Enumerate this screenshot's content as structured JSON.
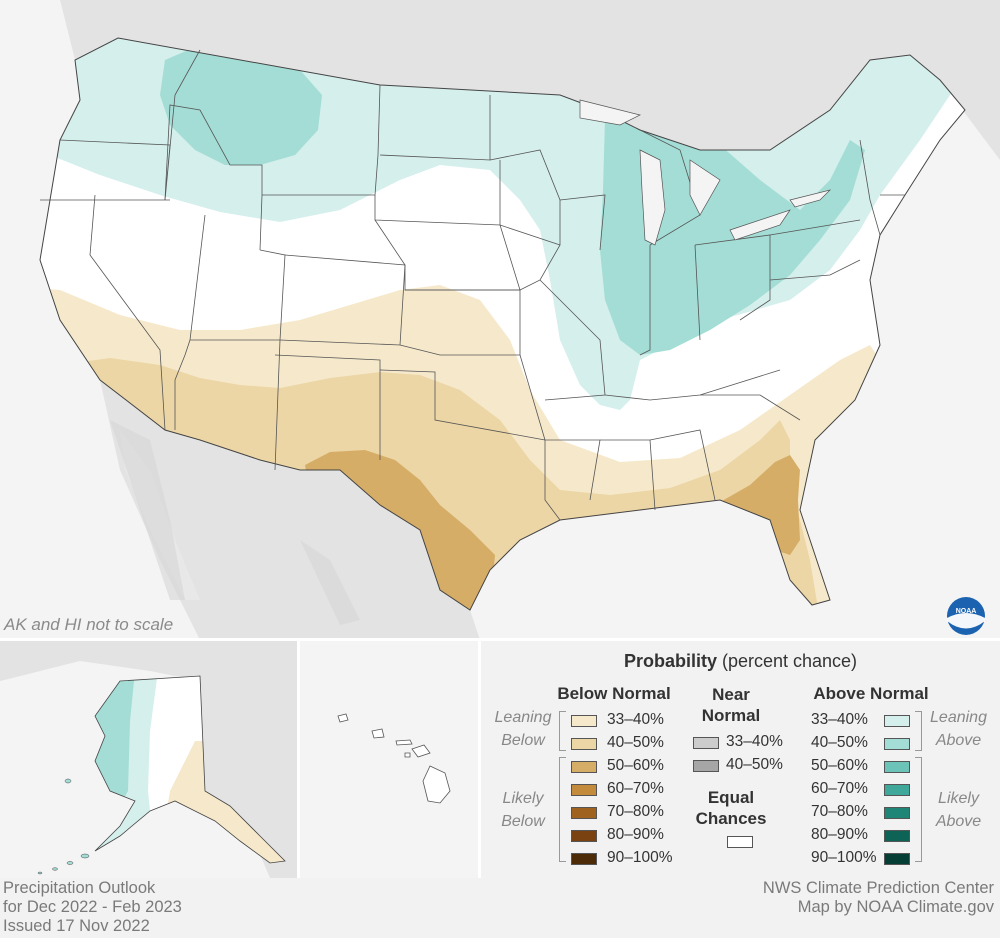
{
  "map": {
    "scale_note": "AK and HI not to scale",
    "logo_text": "NOAA"
  },
  "legend": {
    "title_bold": "Probability",
    "title_rest": "(percent chance)",
    "below": {
      "header": "Below Normal",
      "leaning_label": [
        "Leaning",
        "Below"
      ],
      "likely_label": [
        "Likely",
        "Below"
      ],
      "items": [
        {
          "label": "33–40%",
          "color": "#f6e9cb"
        },
        {
          "label": "40–50%",
          "color": "#ecd6a6"
        },
        {
          "label": "50–60%",
          "color": "#d6ad67"
        },
        {
          "label": "60–70%",
          "color": "#c48b3d"
        },
        {
          "label": "70–80%",
          "color": "#a0621f"
        },
        {
          "label": "80–90%",
          "color": "#7a4210"
        },
        {
          "label": "90–100%",
          "color": "#4d2a08"
        }
      ]
    },
    "near": {
      "header": [
        "Near",
        "Normal"
      ],
      "items": [
        {
          "label": "33–40%",
          "color": "#cccccc"
        },
        {
          "label": "40–50%",
          "color": "#a6a6a6"
        }
      ],
      "equal_header": [
        "Equal",
        "Chances"
      ],
      "equal_color": "#ffffff"
    },
    "above": {
      "header": "Above Normal",
      "leaning_label": [
        "Leaning",
        "Above"
      ],
      "likely_label": [
        "Likely",
        "Above"
      ],
      "items": [
        {
          "label": "33–40%",
          "color": "#d4efec"
        },
        {
          "label": "40–50%",
          "color": "#a3ddd5"
        },
        {
          "label": "50–60%",
          "color": "#6cc4b8"
        },
        {
          "label": "60–70%",
          "color": "#3fa89b"
        },
        {
          "label": "70–80%",
          "color": "#1f8577"
        },
        {
          "label": "80–90%",
          "color": "#0e6357"
        },
        {
          "label": "90–100%",
          "color": "#053e35"
        }
      ]
    }
  },
  "footer": {
    "left": [
      "Precipitation Outlook",
      "for Dec 2022 - Feb 2023",
      "Issued 17 Nov 2022"
    ],
    "right": [
      "NWS Climate Prediction Center",
      "Map by NOAA Climate.gov"
    ]
  },
  "colors": {
    "land_outside": "#e3e3e3",
    "water": "#f4f4f4",
    "state_border": "#555555"
  }
}
